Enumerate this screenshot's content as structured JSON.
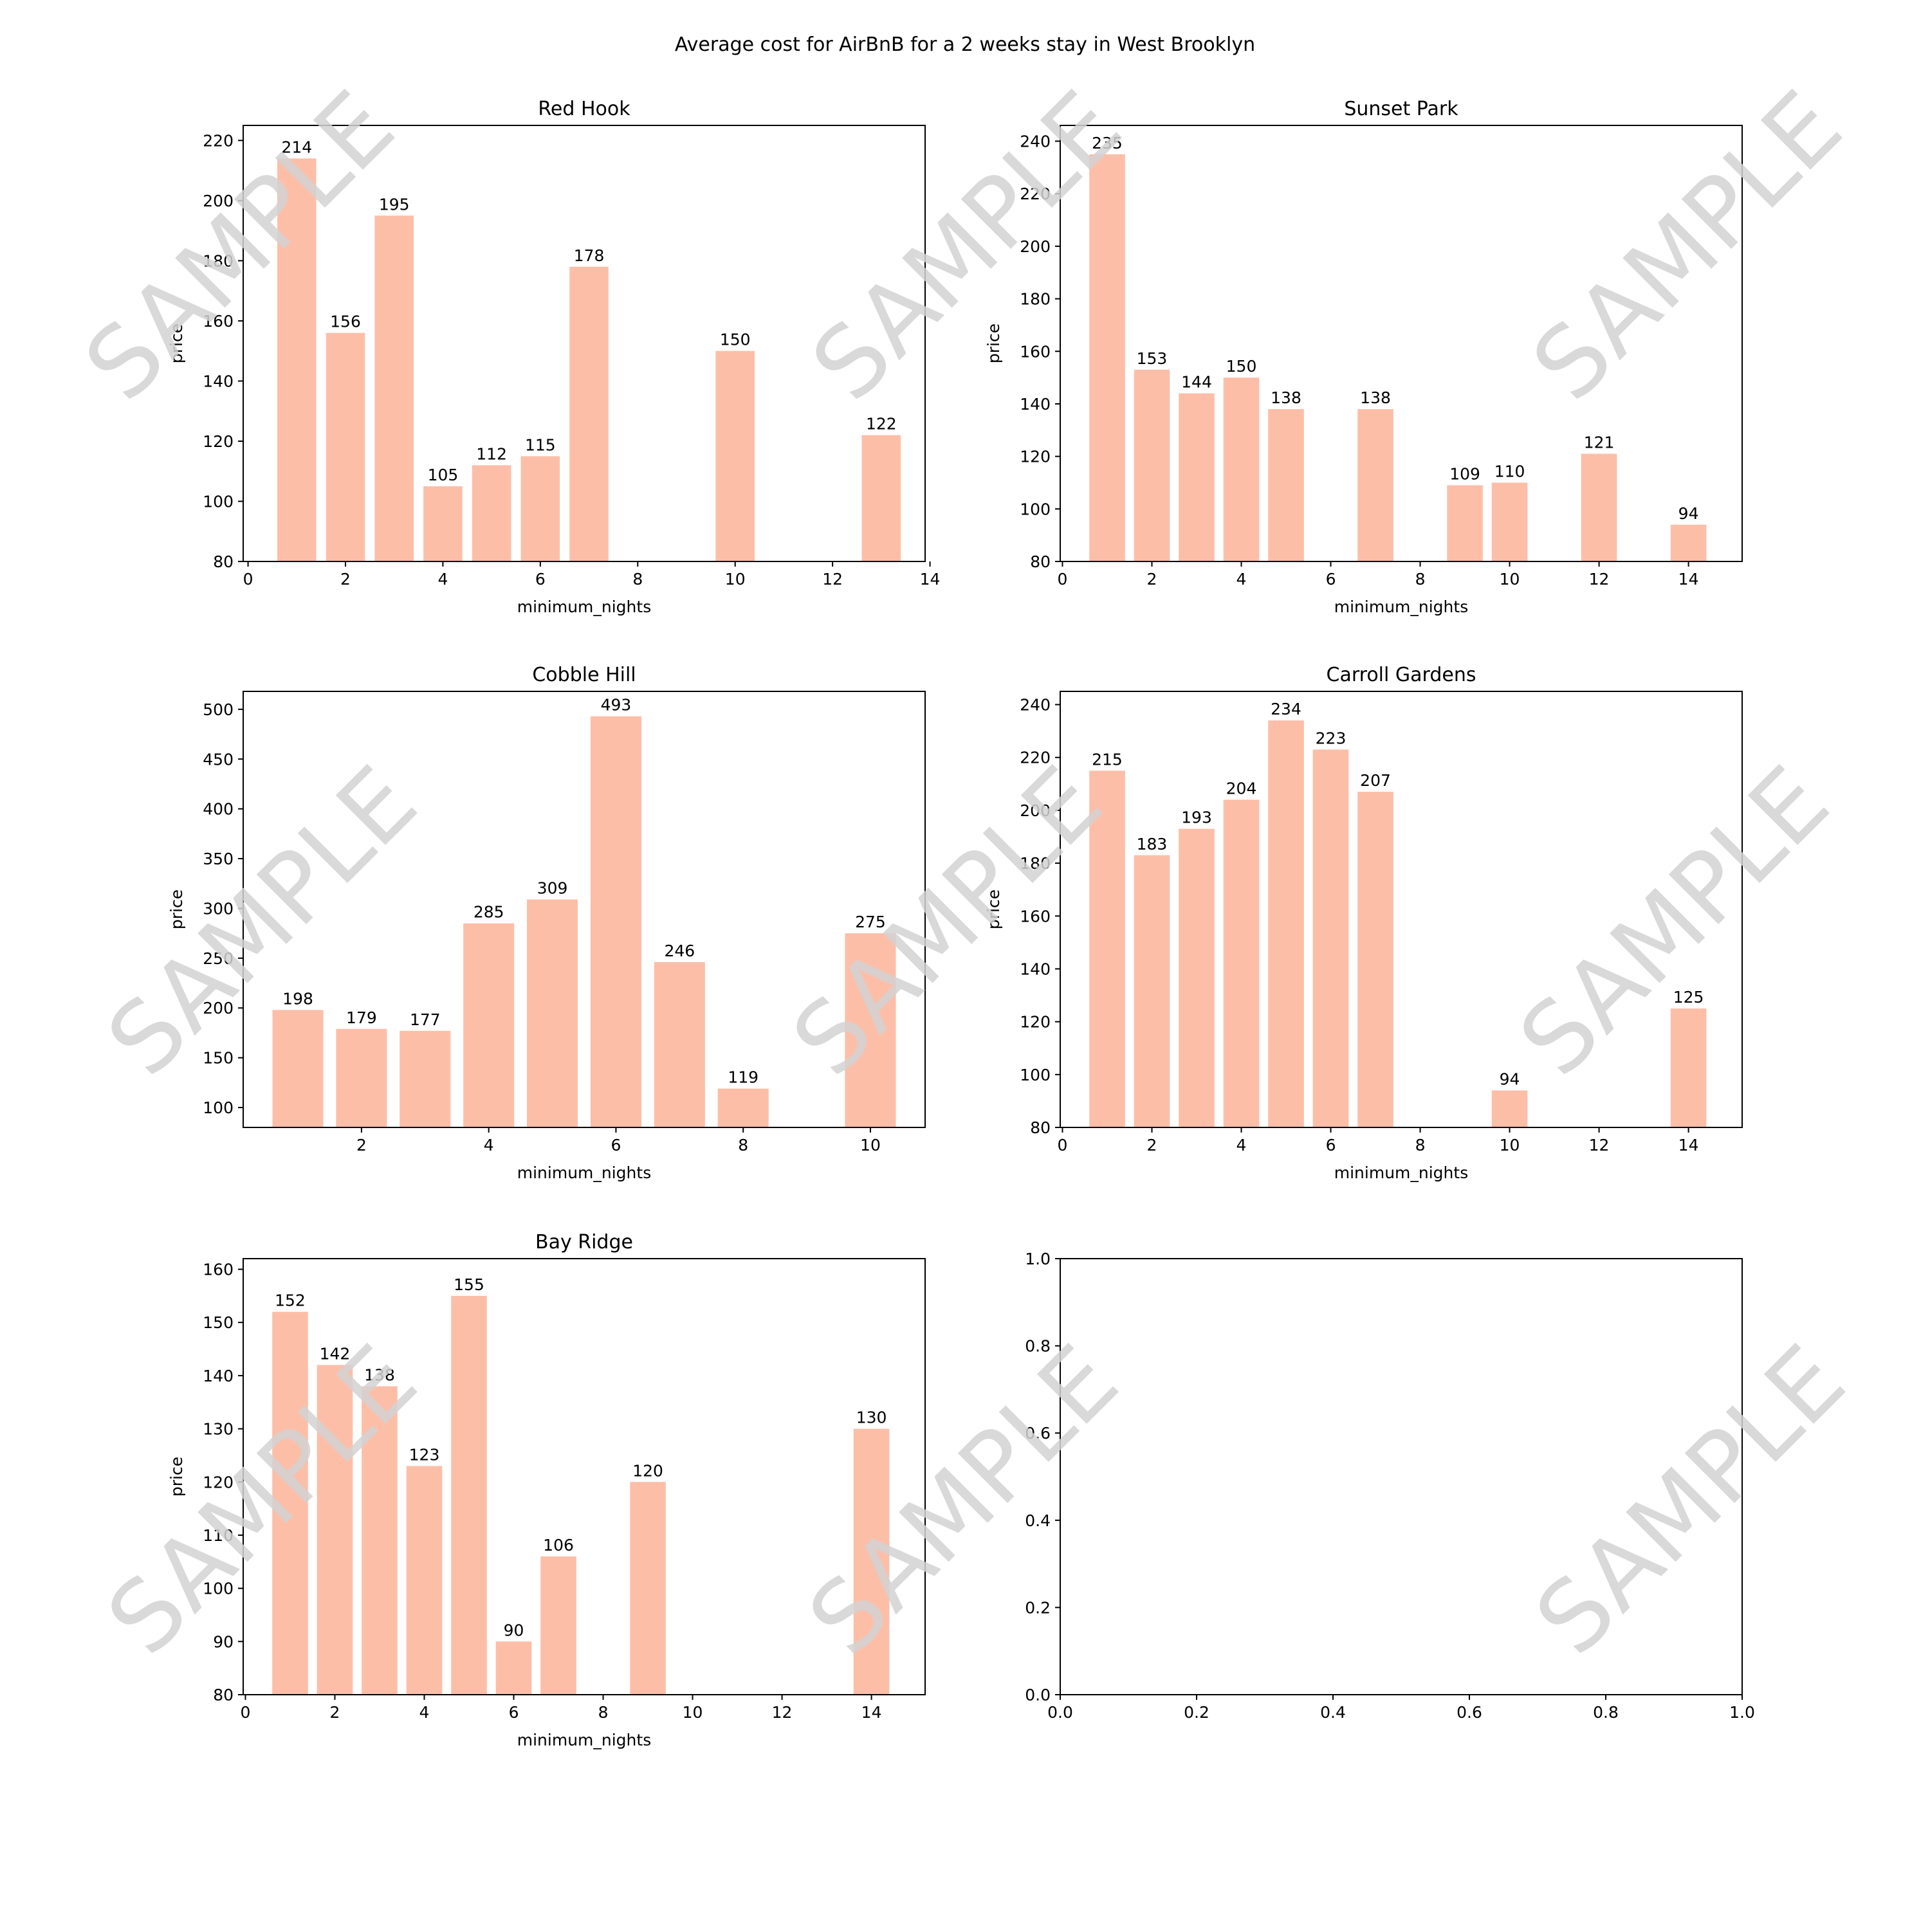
{
  "figure": {
    "title": "Average cost for AirBnB for a 2 weeks stay in West Brooklyn",
    "watermark": "SAMPLE",
    "bar_color": "#fdbea8",
    "watermark_color": "#d2d2d2"
  },
  "chart_data": [
    {
      "type": "bar",
      "title": "Red Hook",
      "xlabel": "minimum_nights",
      "ylabel": "price",
      "x": [
        1,
        2,
        3,
        4,
        5,
        6,
        7,
        10,
        13
      ],
      "values": [
        214,
        156,
        195,
        105,
        112,
        115,
        178,
        150,
        122
      ],
      "data_labels": [
        "214",
        "156",
        "195",
        "105",
        "112",
        "115",
        "178",
        "150",
        "122"
      ],
      "xlim": [
        -0.1,
        13.9
      ],
      "ylim": [
        80,
        225
      ],
      "xticks": [
        0,
        2,
        4,
        6,
        8,
        10,
        12,
        14
      ],
      "xtick_labels": [
        "0",
        "2",
        "4",
        "6",
        "8",
        "10",
        "12",
        "14"
      ],
      "yticks": [
        80,
        100,
        120,
        140,
        160,
        180,
        200,
        220
      ],
      "ytick_labels": [
        "80",
        "100",
        "120",
        "140",
        "160",
        "180",
        "200",
        "220"
      ]
    },
    {
      "type": "bar",
      "title": "Sunset Park",
      "xlabel": "minimum_nights",
      "ylabel": "price",
      "x": [
        1,
        2,
        3,
        4,
        5,
        7,
        9,
        10,
        12,
        14
      ],
      "values": [
        235,
        153,
        144,
        150,
        138,
        138,
        109,
        110,
        121,
        94
      ],
      "data_labels": [
        "235",
        "153",
        "144",
        "150",
        "138",
        "138",
        "109",
        "110",
        "121",
        "94"
      ],
      "xlim": [
        -0.05,
        15.2
      ],
      "ylim": [
        80,
        246
      ],
      "xticks": [
        0,
        2,
        4,
        6,
        8,
        10,
        12,
        14
      ],
      "xtick_labels": [
        "0",
        "2",
        "4",
        "6",
        "8",
        "10",
        "12",
        "14"
      ],
      "yticks": [
        80,
        100,
        120,
        140,
        160,
        180,
        200,
        220,
        240
      ],
      "ytick_labels": [
        "80",
        "100",
        "120",
        "140",
        "160",
        "180",
        "200",
        "220",
        "240"
      ]
    },
    {
      "type": "bar",
      "title": "Cobble Hill",
      "xlabel": "minimum_nights",
      "ylabel": "price",
      "x": [
        1,
        2,
        3,
        4,
        5,
        6,
        7,
        8,
        10
      ],
      "values": [
        198,
        179,
        177,
        285,
        309,
        493,
        246,
        119,
        275
      ],
      "data_labels": [
        "198",
        "179",
        "177",
        "285",
        "309",
        "493",
        "246",
        "119",
        "275"
      ],
      "xlim": [
        0.14,
        10.86
      ],
      "ylim": [
        80,
        518
      ],
      "xticks": [
        2,
        4,
        6,
        8,
        10
      ],
      "xtick_labels": [
        "2",
        "4",
        "6",
        "8",
        "10"
      ],
      "yticks": [
        100,
        150,
        200,
        250,
        300,
        350,
        400,
        450,
        500
      ],
      "ytick_labels": [
        "100",
        "150",
        "200",
        "250",
        "300",
        "350",
        "400",
        "450",
        "500"
      ]
    },
    {
      "type": "bar",
      "title": "Carroll Gardens",
      "xlabel": "minimum_nights",
      "ylabel": "price",
      "x": [
        1,
        2,
        3,
        4,
        5,
        6,
        7,
        10,
        14
      ],
      "values": [
        215,
        183,
        193,
        204,
        234,
        223,
        207,
        94,
        125
      ],
      "data_labels": [
        "215",
        "183",
        "193",
        "204",
        "234",
        "223",
        "207",
        "94",
        "125"
      ],
      "xlim": [
        -0.05,
        15.2
      ],
      "ylim": [
        80,
        245
      ],
      "xticks": [
        0,
        2,
        4,
        6,
        8,
        10,
        12,
        14
      ],
      "xtick_labels": [
        "0",
        "2",
        "4",
        "6",
        "8",
        "10",
        "12",
        "14"
      ],
      "yticks": [
        80,
        100,
        120,
        140,
        160,
        180,
        200,
        220,
        240
      ],
      "ytick_labels": [
        "80",
        "100",
        "120",
        "140",
        "160",
        "180",
        "200",
        "220",
        "240"
      ]
    },
    {
      "type": "bar",
      "title": "Bay Ridge",
      "xlabel": "minimum_nights",
      "ylabel": "price",
      "x": [
        1,
        2,
        3,
        4,
        5,
        6,
        7,
        9,
        14
      ],
      "values": [
        152,
        142,
        138,
        123,
        155,
        90,
        106,
        120,
        130
      ],
      "data_labels": [
        "152",
        "142",
        "138",
        "123",
        "155",
        "90",
        "106",
        "120",
        "130"
      ],
      "xlim": [
        -0.05,
        15.2
      ],
      "ylim": [
        80,
        162
      ],
      "xticks": [
        0,
        2,
        4,
        6,
        8,
        10,
        12,
        14
      ],
      "xtick_labels": [
        "0",
        "2",
        "4",
        "6",
        "8",
        "10",
        "12",
        "14"
      ],
      "yticks": [
        80,
        90,
        100,
        110,
        120,
        130,
        140,
        150,
        160
      ],
      "ytick_labels": [
        "80",
        "90",
        "100",
        "110",
        "120",
        "130",
        "140",
        "150",
        "160"
      ]
    },
    {
      "type": "bar",
      "title": "",
      "xlabel": "",
      "ylabel": "",
      "x": [],
      "values": [],
      "data_labels": [],
      "xlim": [
        0,
        1
      ],
      "ylim": [
        0,
        1
      ],
      "xticks": [
        0,
        0.2,
        0.4,
        0.6,
        0.8,
        1.0
      ],
      "xtick_labels": [
        "0.0",
        "0.2",
        "0.4",
        "0.6",
        "0.8",
        "1.0"
      ],
      "yticks": [
        0,
        0.2,
        0.4,
        0.6,
        0.8,
        1.0
      ],
      "ytick_labels": [
        "0.0",
        "0.2",
        "0.4",
        "0.6",
        "0.8",
        "1.0"
      ]
    }
  ]
}
